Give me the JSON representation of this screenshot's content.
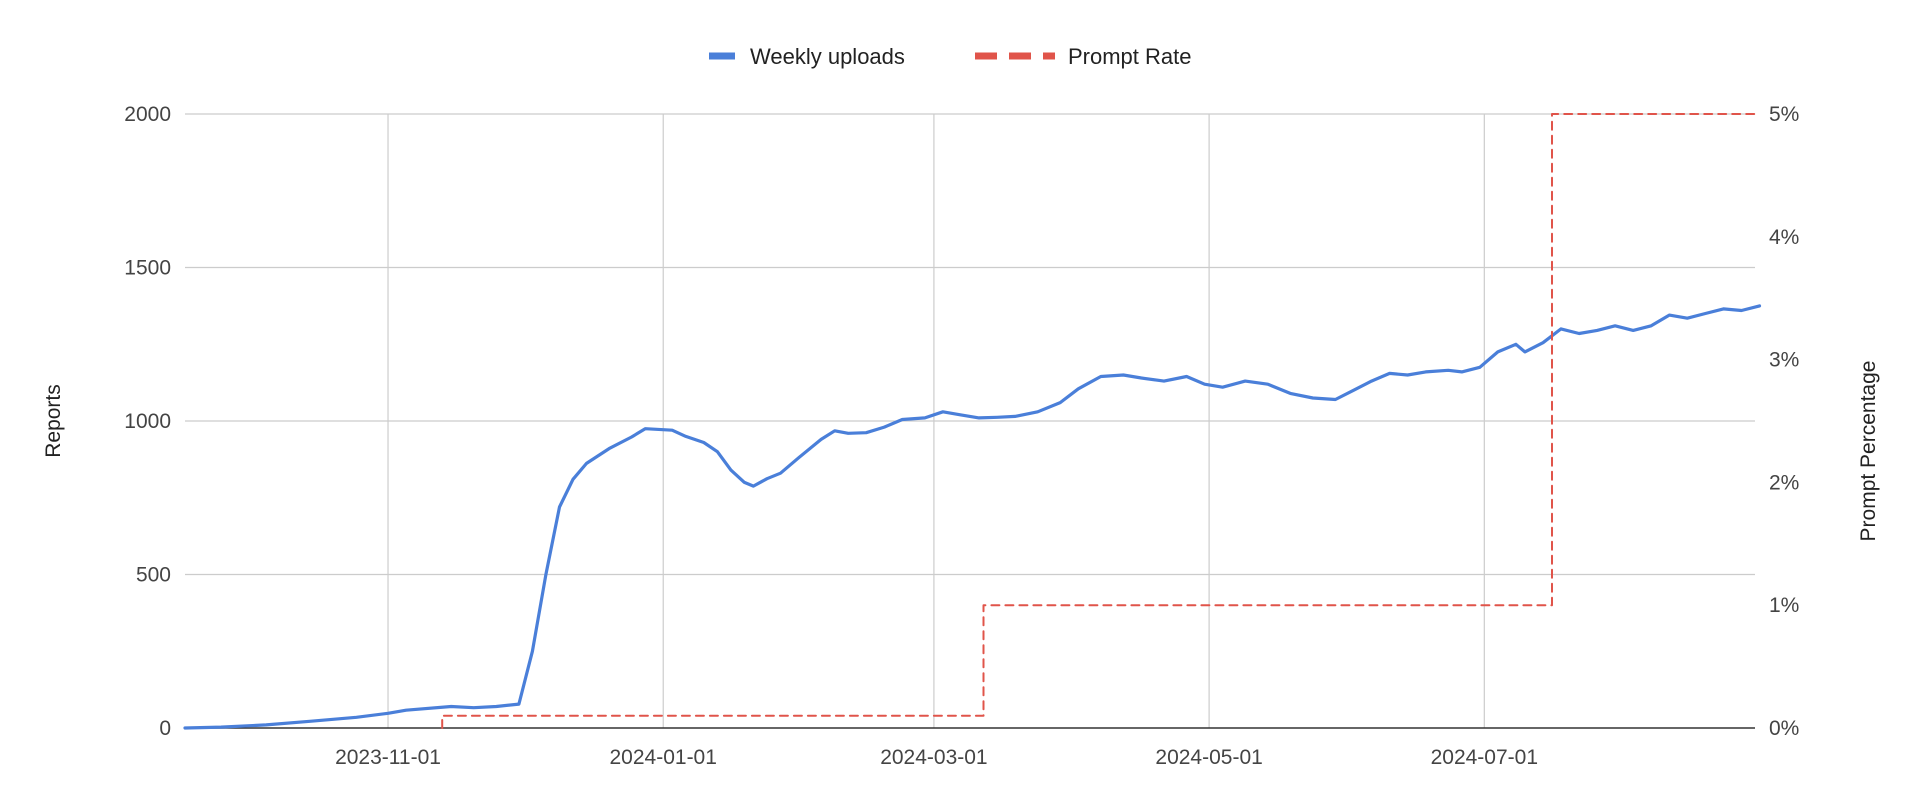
{
  "chart_data": {
    "type": "line",
    "title": "",
    "xlabel": "",
    "ylabel": "Reports",
    "y2label": "Prompt Percentage",
    "ylim": [
      0,
      2000
    ],
    "y2lim": [
      0,
      5
    ],
    "xlim": [
      "2023-09-17",
      "2024-08-30"
    ],
    "grid": true,
    "legend": "top",
    "x_ticks": [
      "2023-11-01",
      "2024-01-01",
      "2024-03-01",
      "2024-05-01",
      "2024-07-01"
    ],
    "y_ticks": [
      {
        "value": 0,
        "label": "0"
      },
      {
        "value": 500,
        "label": "500"
      },
      {
        "value": 1000,
        "label": "1000"
      },
      {
        "value": 1500,
        "label": "1500"
      },
      {
        "value": 2000,
        "label": "2000"
      }
    ],
    "y2_ticks": [
      {
        "value": 0,
        "label": "0%"
      },
      {
        "value": 1,
        "label": "1%"
      },
      {
        "value": 2,
        "label": "2%"
      },
      {
        "value": 3,
        "label": "3%"
      },
      {
        "value": 4,
        "label": "4%"
      },
      {
        "value": 5,
        "label": "5%"
      }
    ],
    "series": [
      {
        "name": "Weekly uploads",
        "axis": "left",
        "color": "#4a7fd9",
        "dash": "solid",
        "points": [
          [
            "2023-09-17",
            0
          ],
          [
            "2023-09-25",
            3
          ],
          [
            "2023-10-05",
            10
          ],
          [
            "2023-10-15",
            22
          ],
          [
            "2023-10-25",
            35
          ],
          [
            "2023-11-01",
            48
          ],
          [
            "2023-11-05",
            58
          ],
          [
            "2023-11-15",
            70
          ],
          [
            "2023-11-20",
            66
          ],
          [
            "2023-11-25",
            70
          ],
          [
            "2023-11-30",
            78
          ],
          [
            "2023-12-03",
            250
          ],
          [
            "2023-12-06",
            500
          ],
          [
            "2023-12-09",
            720
          ],
          [
            "2023-12-12",
            810
          ],
          [
            "2023-12-15",
            862
          ],
          [
            "2023-12-20",
            910
          ],
          [
            "2023-12-25",
            948
          ],
          [
            "2023-12-28",
            975
          ],
          [
            "2024-01-03",
            970
          ],
          [
            "2024-01-06",
            950
          ],
          [
            "2024-01-10",
            930
          ],
          [
            "2024-01-13",
            900
          ],
          [
            "2024-01-16",
            840
          ],
          [
            "2024-01-19",
            800
          ],
          [
            "2024-01-21",
            788
          ],
          [
            "2024-01-24",
            812
          ],
          [
            "2024-01-27",
            830
          ],
          [
            "2024-01-31",
            880
          ],
          [
            "2024-02-05",
            940
          ],
          [
            "2024-02-08",
            968
          ],
          [
            "2024-02-11",
            960
          ],
          [
            "2024-02-15",
            962
          ],
          [
            "2024-02-19",
            980
          ],
          [
            "2024-02-23",
            1005
          ],
          [
            "2024-02-28",
            1010
          ],
          [
            "2024-03-03",
            1030
          ],
          [
            "2024-03-07",
            1020
          ],
          [
            "2024-03-11",
            1010
          ],
          [
            "2024-03-15",
            1012
          ],
          [
            "2024-03-19",
            1015
          ],
          [
            "2024-03-24",
            1030
          ],
          [
            "2024-03-29",
            1060
          ],
          [
            "2024-04-02",
            1105
          ],
          [
            "2024-04-07",
            1145
          ],
          [
            "2024-04-12",
            1150
          ],
          [
            "2024-04-16",
            1140
          ],
          [
            "2024-04-21",
            1130
          ],
          [
            "2024-04-26",
            1145
          ],
          [
            "2024-04-30",
            1120
          ],
          [
            "2024-05-04",
            1110
          ],
          [
            "2024-05-09",
            1130
          ],
          [
            "2024-05-14",
            1120
          ],
          [
            "2024-05-19",
            1090
          ],
          [
            "2024-05-24",
            1075
          ],
          [
            "2024-05-29",
            1070
          ],
          [
            "2024-06-02",
            1100
          ],
          [
            "2024-06-06",
            1130
          ],
          [
            "2024-06-10",
            1155
          ],
          [
            "2024-06-14",
            1150
          ],
          [
            "2024-06-18",
            1160
          ],
          [
            "2024-06-23",
            1165
          ],
          [
            "2024-06-26",
            1160
          ],
          [
            "2024-06-30",
            1175
          ],
          [
            "2024-07-04",
            1225
          ],
          [
            "2024-07-08",
            1250
          ],
          [
            "2024-07-10",
            1225
          ],
          [
            "2024-07-14",
            1255
          ],
          [
            "2024-07-18",
            1300
          ],
          [
            "2024-07-22",
            1285
          ],
          [
            "2024-07-26",
            1295
          ],
          [
            "2024-07-30",
            1310
          ],
          [
            "2024-08-03",
            1295
          ],
          [
            "2024-08-07",
            1310
          ],
          [
            "2024-08-11",
            1345
          ],
          [
            "2024-08-15",
            1335
          ],
          [
            "2024-08-19",
            1350
          ],
          [
            "2024-08-23",
            1365
          ],
          [
            "2024-08-27",
            1360
          ],
          [
            "2024-08-31",
            1375
          ]
        ]
      },
      {
        "name": "Prompt Rate",
        "axis": "right",
        "color": "#e0544a",
        "dash": "dashed",
        "points": [
          [
            "2023-11-13",
            0
          ],
          [
            "2023-11-13",
            0.1
          ],
          [
            "2024-03-12",
            0.1
          ],
          [
            "2024-03-12",
            1
          ],
          [
            "2024-07-16",
            1
          ],
          [
            "2024-07-16",
            5
          ],
          [
            "2024-08-30",
            5
          ]
        ]
      }
    ]
  }
}
